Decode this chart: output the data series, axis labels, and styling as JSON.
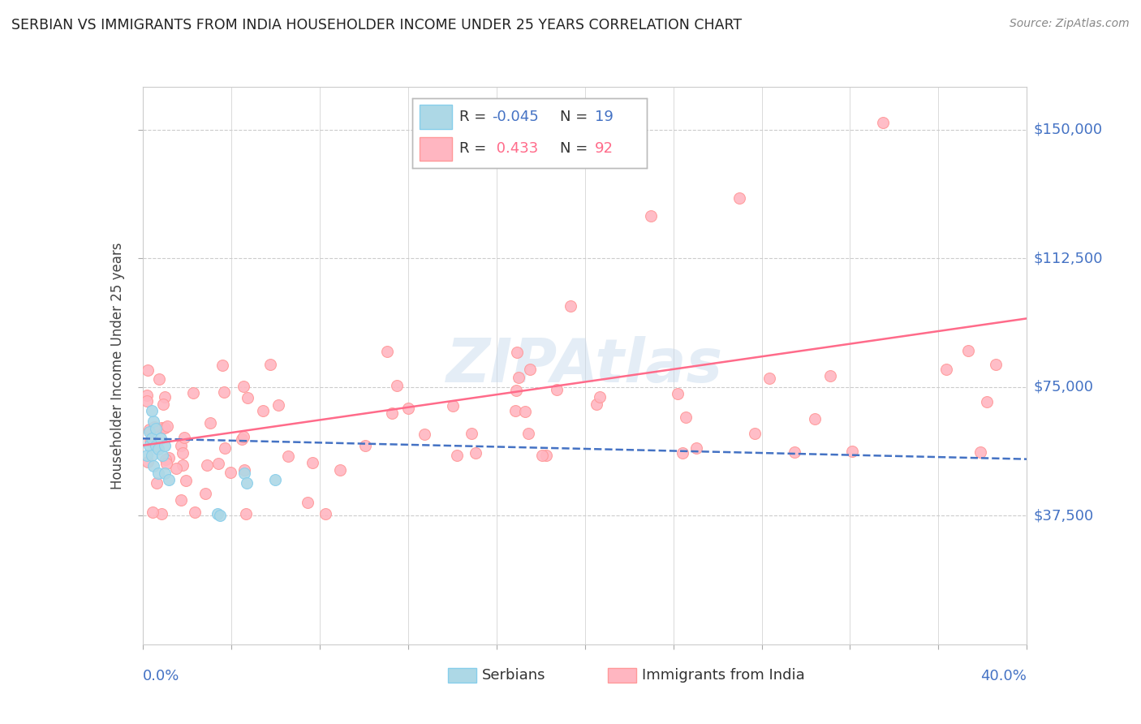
{
  "title": "SERBIAN VS IMMIGRANTS FROM INDIA HOUSEHOLDER INCOME UNDER 25 YEARS CORRELATION CHART",
  "source": "Source: ZipAtlas.com",
  "ylabel": "Householder Income Under 25 years",
  "watermark": "ZIPAtlas",
  "xlim": [
    0.0,
    0.4
  ],
  "ylim": [
    0,
    162500
  ],
  "ytick_values": [
    37500,
    75000,
    112500,
    150000
  ],
  "ytick_labels": [
    "$37,500",
    "$75,000",
    "$112,500",
    "$150,000"
  ],
  "background_color": "#FFFFFF",
  "grid_color": "#DDDDDD",
  "serbian_dot_color": "#ADD8E6",
  "serbian_dot_edge": "#87CEEB",
  "india_dot_color": "#FFB6C1",
  "india_dot_edge": "#FF9999",
  "serbian_line_color": "#4472C4",
  "india_line_color": "#FF6B8A",
  "axis_label_color": "#4472C4",
  "title_color": "#222222",
  "source_color": "#888888",
  "legend_r_serbian": "-0.045",
  "legend_n_serbian": "19",
  "legend_r_india": "0.433",
  "legend_n_india": "92",
  "dot_size": 100
}
